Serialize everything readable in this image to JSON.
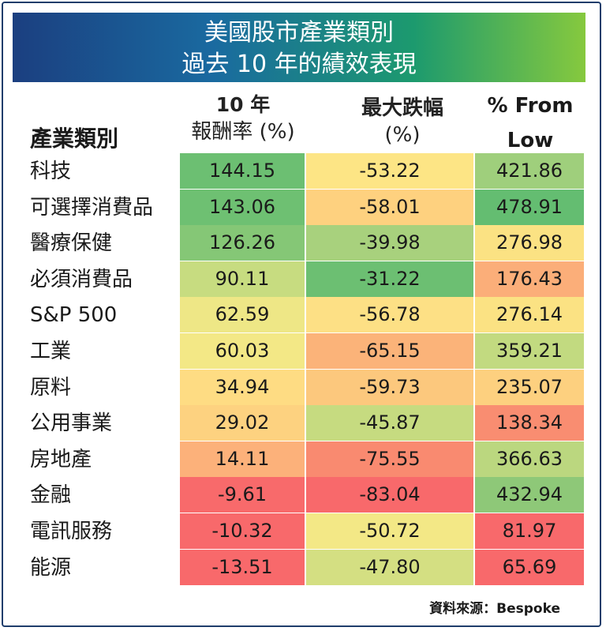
{
  "title_line1": "美國股市產業類別",
  "title_line2": "過去 10 年的績效表現",
  "headers": {
    "category": "產業類別",
    "return_line1": "10 年",
    "return_line2": "報酬率 (%)",
    "drawdown_line1": "最大跌幅",
    "drawdown_line2": "(%)",
    "from_low_line1": "% From",
    "from_low_line2": "Low"
  },
  "source": "資料來源：Bespoke",
  "chart_data": {
    "type": "table",
    "columns": [
      "產業類別",
      "10 年 報酬率 (%)",
      "最大跌幅 (%)",
      "% From Low"
    ],
    "rows": [
      {
        "sector": "科技",
        "return_10y": "144.15",
        "max_drawdown": "-53.22",
        "from_low": "421.86",
        "colors": [
          "#6cbf72",
          "#fde585",
          "#9fcf7c"
        ]
      },
      {
        "sector": "可選擇消費品",
        "return_10y": "143.06",
        "max_drawdown": "-58.01",
        "from_low": "478.91",
        "colors": [
          "#6ec072",
          "#fed17f",
          "#64bd71"
        ]
      },
      {
        "sector": "醫療保健",
        "return_10y": "126.26",
        "max_drawdown": "-39.98",
        "from_low": "276.98",
        "colors": [
          "#85c776",
          "#a8d17d",
          "#fbe283"
        ]
      },
      {
        "sector": "必須消費品",
        "return_10y": "90.11",
        "max_drawdown": "-31.22",
        "from_low": "176.43",
        "colors": [
          "#c7dc80",
          "#6cbf72",
          "#fbae79"
        ]
      },
      {
        "sector": "S&P 500",
        "return_10y": "62.59",
        "max_drawdown": "-56.78",
        "from_low": "276.14",
        "colors": [
          "#eee786",
          "#fde085",
          "#fbe283"
        ]
      },
      {
        "sector": "工業",
        "return_10y": "60.03",
        "max_drawdown": "-65.15",
        "from_low": "359.21",
        "colors": [
          "#f3e886",
          "#fbb379",
          "#c2da80"
        ]
      },
      {
        "sector": "原料",
        "return_10y": "34.94",
        "max_drawdown": "-59.73",
        "from_low": "235.07",
        "colors": [
          "#fedc83",
          "#fcc87d",
          "#fdd07f"
        ]
      },
      {
        "sector": "公用事業",
        "return_10y": "29.02",
        "max_drawdown": "-45.87",
        "from_low": "138.34",
        "colors": [
          "#fdd280",
          "#c6db80",
          "#f98d71"
        ]
      },
      {
        "sector": "房地產",
        "return_10y": "14.11",
        "max_drawdown": "-75.55",
        "from_low": "366.63",
        "colors": [
          "#fcb17a",
          "#f98a70",
          "#bbd77f"
        ]
      },
      {
        "sector": "金融",
        "return_10y": "-9.61",
        "max_drawdown": "-83.04",
        "from_low": "432.94",
        "colors": [
          "#f86a6b",
          "#f8696b",
          "#8ec878"
        ]
      },
      {
        "sector": "電訊服務",
        "return_10y": "-10.32",
        "max_drawdown": "-50.72",
        "from_low": "81.97",
        "colors": [
          "#f8696b",
          "#f3e886",
          "#f8696b"
        ]
      },
      {
        "sector": "能源",
        "return_10y": "-13.51",
        "max_drawdown": "-47.80",
        "from_low": "65.69",
        "colors": [
          "#f8696b",
          "#d4df82",
          "#f8696b"
        ]
      }
    ]
  }
}
